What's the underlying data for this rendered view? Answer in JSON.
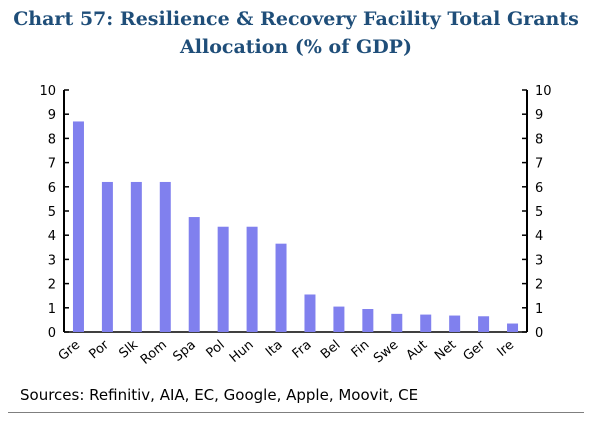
{
  "title_line1": "Chart 57: Resilience & Recovery Facility Total Grants",
  "title_line2": "Allocation (% of GDP)",
  "source": "Sources: Refinitiv, AIA, EC, Google, Apple, Moovit, CE",
  "colors": {
    "bar": "#8080ee",
    "title": "#1f4e79",
    "axis": "#000000"
  },
  "chart_data": {
    "type": "bar",
    "title": "Chart 57: Resilience & Recovery Facility Total Grants Allocation (% of GDP)",
    "categories": [
      "Gre",
      "Por",
      "Slk",
      "Rom",
      "Spa",
      "Pol",
      "Hun",
      "Ita",
      "Fra",
      "Bel",
      "Fin",
      "Swe",
      "Aut",
      "Net",
      "Ger",
      "Ire"
    ],
    "values": [
      8.7,
      6.2,
      6.2,
      6.2,
      4.75,
      4.35,
      4.35,
      3.65,
      1.55,
      1.05,
      0.95,
      0.75,
      0.72,
      0.68,
      0.65,
      0.35
    ],
    "ylim": [
      0,
      10
    ],
    "yticks": [
      0,
      1,
      2,
      3,
      4,
      5,
      6,
      7,
      8,
      9,
      10
    ],
    "ytick_labels": [
      "0",
      "1",
      "2",
      "3",
      "4",
      "5",
      "6",
      "7",
      "8",
      "9",
      "10"
    ],
    "grid": false,
    "xlabel": "",
    "ylabel": ""
  }
}
